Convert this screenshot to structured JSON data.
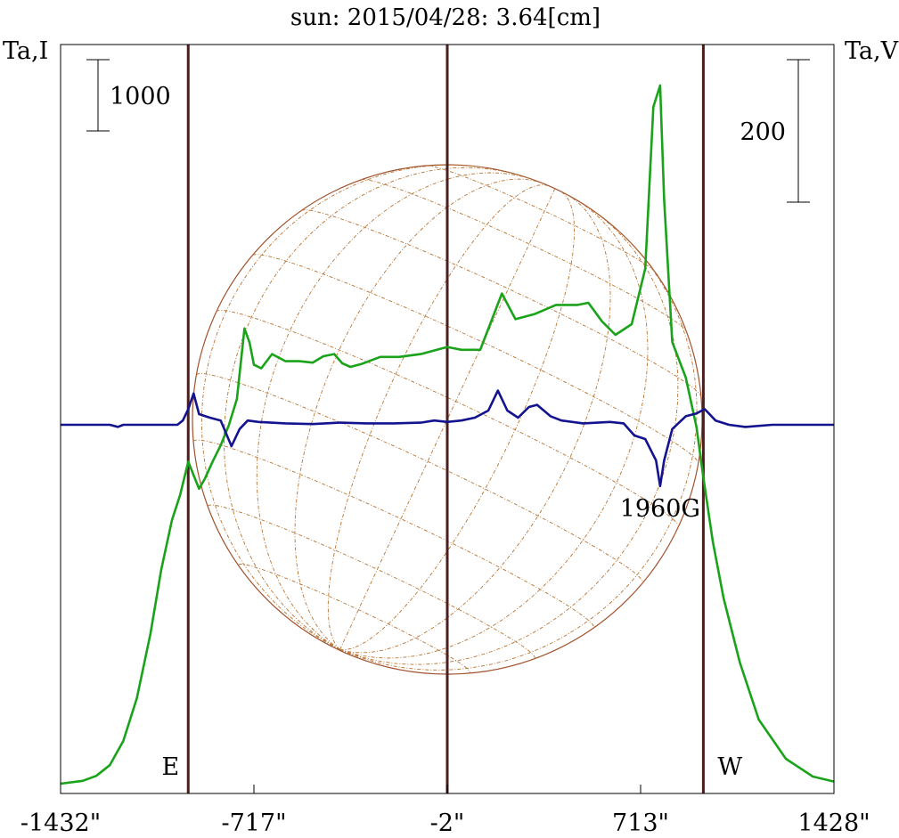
{
  "chart_data": {
    "type": "line",
    "title": "sun: 2015/04/28: 3.64[cm]",
    "left_axis_label": "Ta,I",
    "right_axis_label": "Ta,V",
    "x_ticks": [
      {
        "value": -1432,
        "label": "-1432\""
      },
      {
        "value": -717,
        "label": "-717\""
      },
      {
        "value": -2,
        "label": "-2\""
      },
      {
        "value": 713,
        "label": "713\""
      },
      {
        "value": 1428,
        "label": "1428\""
      }
    ],
    "xlim": [
      -1432,
      1428
    ],
    "scale_bars": [
      {
        "axis": "left",
        "label": "1000",
        "length": 1000
      },
      {
        "axis": "right",
        "label": "200",
        "length": 200
      }
    ],
    "limb_markers": [
      {
        "x": -960,
        "label": "E"
      },
      {
        "x": -2,
        "label": ""
      },
      {
        "x": 945,
        "label": "W"
      }
    ],
    "annotations": [
      {
        "x": 785,
        "label": "1960G"
      }
    ],
    "colors": {
      "intensity": "#1aa31a",
      "circular": "#13138f",
      "limb_lines": "#4a1f1f",
      "disk": "#a0522d",
      "grid": "#b87333",
      "title": "#1a1a66"
    },
    "series": [
      {
        "key": "intensity",
        "units": "Ta,I",
        "points": [
          [
            -1432,
            0
          ],
          [
            -1350,
            40
          ],
          [
            -1300,
            110
          ],
          [
            -1250,
            260
          ],
          [
            -1200,
            600
          ],
          [
            -1150,
            1200
          ],
          [
            -1100,
            2100
          ],
          [
            -1060,
            3000
          ],
          [
            -1020,
            3700
          ],
          [
            -990,
            4050
          ],
          [
            -960,
            4520
          ],
          [
            -940,
            4330
          ],
          [
            -920,
            4140
          ],
          [
            -900,
            4270
          ],
          [
            -870,
            4520
          ],
          [
            -840,
            4750
          ],
          [
            -810,
            5030
          ],
          [
            -780,
            5400
          ],
          [
            -752,
            6390
          ],
          [
            -733,
            6190
          ],
          [
            -717,
            5880
          ],
          [
            -690,
            5830
          ],
          [
            -650,
            6030
          ],
          [
            -600,
            5930
          ],
          [
            -550,
            5930
          ],
          [
            -500,
            5910
          ],
          [
            -460,
            6000
          ],
          [
            -420,
            6030
          ],
          [
            -390,
            5900
          ],
          [
            -360,
            5850
          ],
          [
            -320,
            5890
          ],
          [
            -250,
            5990
          ],
          [
            -180,
            5990
          ],
          [
            -100,
            6030
          ],
          [
            -2,
            6130
          ],
          [
            50,
            6090
          ],
          [
            120,
            6090
          ],
          [
            200,
            6880
          ],
          [
            250,
            6520
          ],
          [
            320,
            6590
          ],
          [
            400,
            6720
          ],
          [
            480,
            6720
          ],
          [
            520,
            6750
          ],
          [
            570,
            6490
          ],
          [
            620,
            6300
          ],
          [
            680,
            6450
          ],
          [
            730,
            7230
          ],
          [
            760,
            9500
          ],
          [
            785,
            9800
          ],
          [
            800,
            8200
          ],
          [
            830,
            6200
          ],
          [
            880,
            5700
          ],
          [
            920,
            5000
          ],
          [
            945,
            4300
          ],
          [
            980,
            3400
          ],
          [
            1020,
            2600
          ],
          [
            1080,
            1700
          ],
          [
            1150,
            900
          ],
          [
            1250,
            350
          ],
          [
            1350,
            100
          ],
          [
            1428,
            30
          ]
        ]
      },
      {
        "key": "circular",
        "units": "Ta,V",
        "points": [
          [
            -1432,
            0
          ],
          [
            -1250,
            0
          ],
          [
            -1220,
            -3
          ],
          [
            -1200,
            0
          ],
          [
            -1000,
            0
          ],
          [
            -980,
            6
          ],
          [
            -960,
            22
          ],
          [
            -940,
            44
          ],
          [
            -920,
            15
          ],
          [
            -880,
            10
          ],
          [
            -840,
            6
          ],
          [
            -800,
            -30
          ],
          [
            -770,
            -6
          ],
          [
            -740,
            6
          ],
          [
            -700,
            4
          ],
          [
            -600,
            2
          ],
          [
            -500,
            1
          ],
          [
            -400,
            3
          ],
          [
            -300,
            2
          ],
          [
            -200,
            2
          ],
          [
            -100,
            3
          ],
          [
            -50,
            6
          ],
          [
            -2,
            4
          ],
          [
            50,
            6
          ],
          [
            100,
            10
          ],
          [
            150,
            20
          ],
          [
            185,
            48
          ],
          [
            220,
            20
          ],
          [
            260,
            10
          ],
          [
            300,
            25
          ],
          [
            330,
            28
          ],
          [
            380,
            12
          ],
          [
            420,
            6
          ],
          [
            500,
            2
          ],
          [
            600,
            4
          ],
          [
            650,
            2
          ],
          [
            690,
            -15
          ],
          [
            730,
            -20
          ],
          [
            770,
            -50
          ],
          [
            785,
            -86
          ],
          [
            800,
            -50
          ],
          [
            830,
            -6
          ],
          [
            880,
            12
          ],
          [
            920,
            16
          ],
          [
            950,
            22
          ],
          [
            990,
            6
          ],
          [
            1040,
            0
          ],
          [
            1100,
            -3
          ],
          [
            1200,
            0
          ],
          [
            1300,
            0
          ],
          [
            1428,
            0
          ]
        ]
      }
    ]
  }
}
